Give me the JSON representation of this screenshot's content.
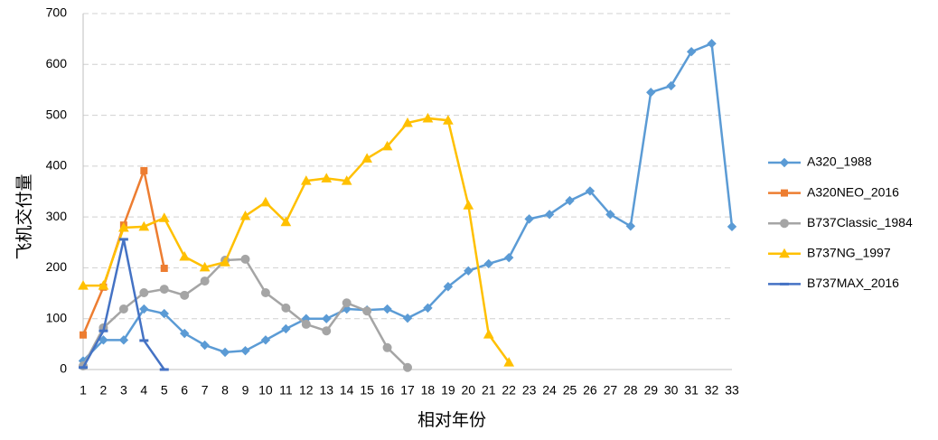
{
  "chart_data": {
    "type": "line",
    "x_label": "相对年份",
    "y_label": "飞机交付量",
    "categories": [
      1,
      2,
      3,
      4,
      5,
      6,
      7,
      8,
      9,
      10,
      11,
      12,
      13,
      14,
      15,
      16,
      17,
      18,
      19,
      20,
      21,
      22,
      23,
      24,
      25,
      26,
      27,
      28,
      29,
      30,
      31,
      32,
      33
    ],
    "ylim": [
      0,
      700
    ],
    "yticks": [
      0,
      100,
      200,
      300,
      400,
      500,
      600,
      700
    ],
    "grid": true,
    "legend": "right",
    "series": [
      {
        "name": "A320_1988",
        "color": "#5b9bd5",
        "marker": "diamond",
        "values": [
          17,
          58,
          58,
          119,
          110,
          71,
          48,
          34,
          37,
          58,
          80,
          100,
          100,
          119,
          117,
          119,
          101,
          121,
          163,
          194,
          208,
          220,
          296,
          305,
          332,
          351,
          305,
          282,
          545,
          558,
          625,
          641,
          281
        ]
      },
      {
        "name": "A320NEO_2016",
        "color": "#ed7d31",
        "marker": "square",
        "values": [
          68,
          162,
          284,
          391,
          199,
          null,
          null,
          null,
          null,
          null,
          null,
          null,
          null,
          null,
          null,
          null,
          null,
          null,
          null,
          null,
          null,
          null,
          null,
          null,
          null,
          null,
          null,
          null,
          null,
          null,
          null,
          null,
          null
        ]
      },
      {
        "name": "B737Classic_1984",
        "color": "#a5a5a5",
        "marker": "circle",
        "values": [
          7,
          82,
          119,
          151,
          158,
          146,
          174,
          215,
          217,
          151,
          121,
          89,
          76,
          131,
          115,
          43,
          4,
          null,
          null,
          null,
          null,
          null,
          null,
          null,
          null,
          null,
          null,
          null,
          null,
          null,
          null,
          null,
          null
        ]
      },
      {
        "name": "B737NG_1997",
        "color": "#ffc000",
        "marker": "triangle",
        "values": [
          165,
          165,
          279,
          281,
          298,
          222,
          201,
          211,
          302,
          329,
          290,
          371,
          376,
          371,
          415,
          439,
          485,
          494,
          490,
          323,
          69,
          14,
          null,
          null,
          null,
          null,
          null,
          null,
          null,
          null,
          null,
          null,
          null
        ]
      },
      {
        "name": "B737MAX_2016",
        "color": "#4472c4",
        "marker": "dash",
        "values": [
          4,
          76,
          256,
          57,
          0,
          null,
          null,
          null,
          null,
          null,
          null,
          null,
          null,
          null,
          null,
          null,
          null,
          null,
          null,
          null,
          null,
          null,
          null,
          null,
          null,
          null,
          null,
          null,
          null,
          null,
          null,
          null,
          null
        ]
      }
    ]
  }
}
